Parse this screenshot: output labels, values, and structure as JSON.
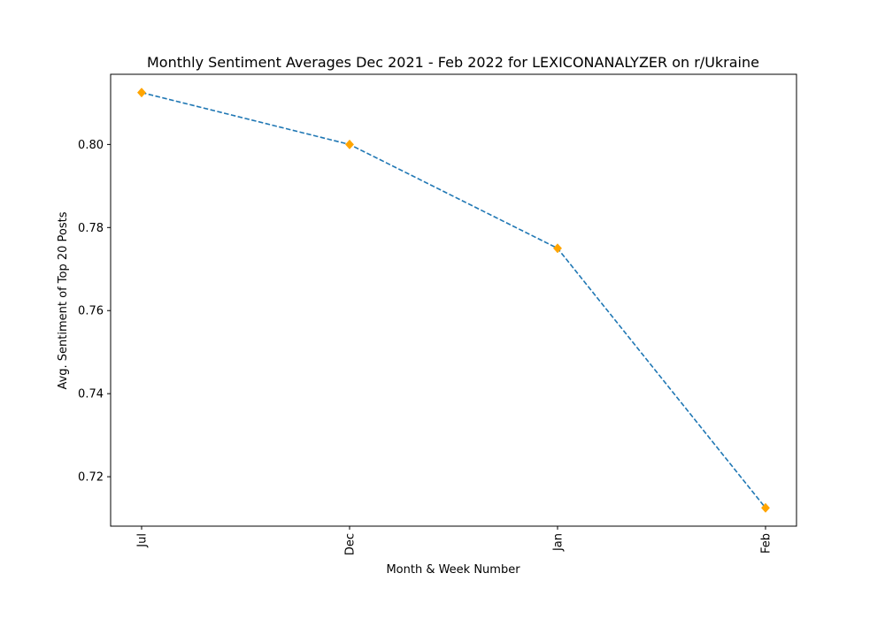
{
  "chart_data": {
    "type": "line",
    "title": "Monthly Sentiment Averages Dec 2021 - Feb 2022 for LEXICONANALYZER on r/Ukraine",
    "xlabel": "Month & Week Number",
    "ylabel": "Avg. Sentiment of Top 20 Posts",
    "categories": [
      "Jul",
      "Dec",
      "Jan",
      "Feb"
    ],
    "series": [
      {
        "values": [
          0.8125,
          0.8,
          0.775,
          0.7125
        ],
        "line_color": "#1f77b4",
        "line_style": "dashed",
        "marker": "diamond",
        "marker_color": "#ffa500"
      }
    ],
    "yticks": [
      0.72,
      0.74,
      0.76,
      0.78,
      0.8
    ],
    "ytick_labels": [
      "0.72",
      "0.74",
      "0.76",
      "0.78",
      "0.80"
    ],
    "ylim": [
      0.7081,
      0.8169
    ],
    "grid": false,
    "x_tick_rotation": "vertical"
  }
}
